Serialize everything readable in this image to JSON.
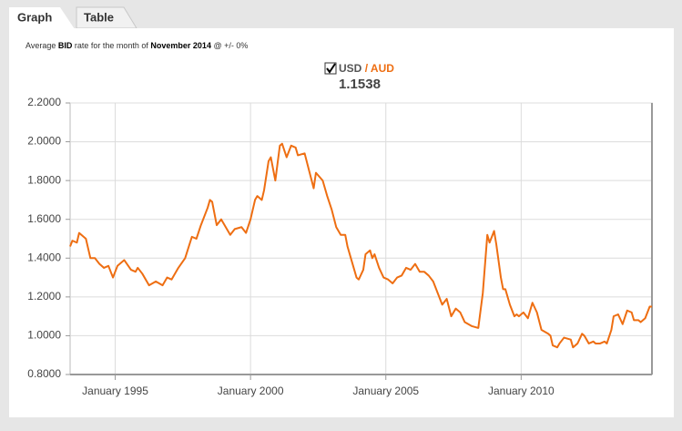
{
  "tabs": [
    "Graph",
    "Table"
  ],
  "caption": {
    "prefix": "Average ",
    "bid": "BID",
    "middle": " rate for the month of ",
    "month": "November 2014",
    "suffix": " @ +/- 0%"
  },
  "chart_data": {
    "type": "line",
    "base": "USD",
    "separator": "/",
    "quote": "AUD",
    "current": 1.1538,
    "x": [
      "1993-05",
      "1993-06",
      "1993-08",
      "1993-09",
      "1993-12",
      "1994-02",
      "1994-04",
      "1994-06",
      "1994-08",
      "1994-10",
      "1994-12",
      "1995-02",
      "1995-05",
      "1995-08",
      "1995-10",
      "1995-11",
      "1996-01",
      "1996-04",
      "1996-07",
      "1996-10",
      "1996-12",
      "1997-02",
      "1997-05",
      "1997-08",
      "1997-11",
      "1998-01",
      "1998-03",
      "1998-06",
      "1998-07",
      "1998-08",
      "1998-10",
      "1998-12",
      "1999-02",
      "1999-04",
      "1999-06",
      "1999-09",
      "1999-11",
      "2000-01",
      "2000-03",
      "2000-04",
      "2000-06",
      "2000-07",
      "2000-09",
      "2000-10",
      "2000-12",
      "2001-02",
      "2001-03",
      "2001-05",
      "2001-07",
      "2001-09",
      "2001-10",
      "2002-01",
      "2002-03",
      "2002-05",
      "2002-06",
      "2002-09",
      "2002-11",
      "2003-01",
      "2003-03",
      "2003-05",
      "2003-07",
      "2003-08",
      "2003-10",
      "2003-12",
      "2004-01",
      "2004-03",
      "2004-04",
      "2004-06",
      "2004-07",
      "2004-08",
      "2004-10",
      "2004-12",
      "2005-02",
      "2005-04",
      "2005-06",
      "2005-08",
      "2005-10",
      "2005-12",
      "2006-02",
      "2006-04",
      "2006-06",
      "2006-08",
      "2006-10",
      "2006-12",
      "2007-02",
      "2007-04",
      "2007-06",
      "2007-08",
      "2007-10",
      "2007-12",
      "2008-03",
      "2008-06",
      "2008-08",
      "2008-10",
      "2008-11",
      "2009-01",
      "2009-02",
      "2009-04",
      "2009-05",
      "2009-06",
      "2009-08",
      "2009-10",
      "2009-11",
      "2009-12",
      "2010-02",
      "2010-04",
      "2010-06",
      "2010-08",
      "2010-10",
      "2011-01",
      "2011-02",
      "2011-03",
      "2011-05",
      "2011-06",
      "2011-08",
      "2011-11",
      "2011-12",
      "2012-02",
      "2012-04",
      "2012-05",
      "2012-07",
      "2012-09",
      "2012-10",
      "2012-12",
      "2013-02",
      "2013-03",
      "2013-05",
      "2013-06",
      "2013-08",
      "2013-10",
      "2013-12",
      "2014-02",
      "2014-03",
      "2014-05",
      "2014-06",
      "2014-08",
      "2014-10",
      "2014-11"
    ],
    "series": [
      {
        "color": "#ee6e12",
        "values": [
          1.46,
          1.49,
          1.48,
          1.53,
          1.5,
          1.4,
          1.4,
          1.37,
          1.35,
          1.36,
          1.3,
          1.36,
          1.39,
          1.34,
          1.33,
          1.35,
          1.32,
          1.26,
          1.28,
          1.26,
          1.3,
          1.29,
          1.35,
          1.4,
          1.51,
          1.5,
          1.57,
          1.66,
          1.7,
          1.69,
          1.57,
          1.6,
          1.56,
          1.52,
          1.55,
          1.56,
          1.53,
          1.6,
          1.7,
          1.72,
          1.7,
          1.75,
          1.9,
          1.92,
          1.8,
          1.98,
          1.99,
          1.92,
          1.98,
          1.97,
          1.93,
          1.94,
          1.85,
          1.76,
          1.84,
          1.8,
          1.72,
          1.65,
          1.56,
          1.52,
          1.52,
          1.46,
          1.38,
          1.3,
          1.29,
          1.34,
          1.42,
          1.44,
          1.4,
          1.42,
          1.35,
          1.3,
          1.29,
          1.27,
          1.3,
          1.31,
          1.35,
          1.34,
          1.37,
          1.33,
          1.33,
          1.31,
          1.28,
          1.22,
          1.16,
          1.19,
          1.1,
          1.14,
          1.12,
          1.07,
          1.05,
          1.04,
          1.22,
          1.52,
          1.48,
          1.54,
          1.47,
          1.3,
          1.24,
          1.24,
          1.16,
          1.1,
          1.11,
          1.1,
          1.12,
          1.09,
          1.17,
          1.12,
          1.03,
          1.01,
          1.0,
          0.95,
          0.94,
          0.96,
          0.99,
          0.98,
          0.94,
          0.96,
          1.01,
          1.0,
          0.96,
          0.97,
          0.96,
          0.96,
          0.97,
          0.96,
          1.03,
          1.1,
          1.11,
          1.06,
          1.13,
          1.12,
          1.08,
          1.08,
          1.07,
          1.09,
          1.15,
          1.15
        ]
      }
    ],
    "xlim": [
      "1993-05",
      "2014-11"
    ],
    "xticks": [
      {
        "value": "1995-01",
        "label": "January 1995"
      },
      {
        "value": "2000-01",
        "label": "January 2000"
      },
      {
        "value": "2005-01",
        "label": "January 2005"
      },
      {
        "value": "2010-01",
        "label": "January 2010"
      }
    ],
    "ylim": [
      0.8,
      2.2
    ],
    "yticks": [
      {
        "value": 0.8,
        "label": "0.8000"
      },
      {
        "value": 1.0,
        "label": "1.0000"
      },
      {
        "value": 1.2,
        "label": "1.2000"
      },
      {
        "value": 1.4,
        "label": "1.4000"
      },
      {
        "value": 1.6,
        "label": "1.6000"
      },
      {
        "value": 1.8,
        "label": "1.8000"
      },
      {
        "value": 2.0,
        "label": "2.0000"
      },
      {
        "value": 2.2,
        "label": "2.2000"
      }
    ],
    "grid": true
  }
}
